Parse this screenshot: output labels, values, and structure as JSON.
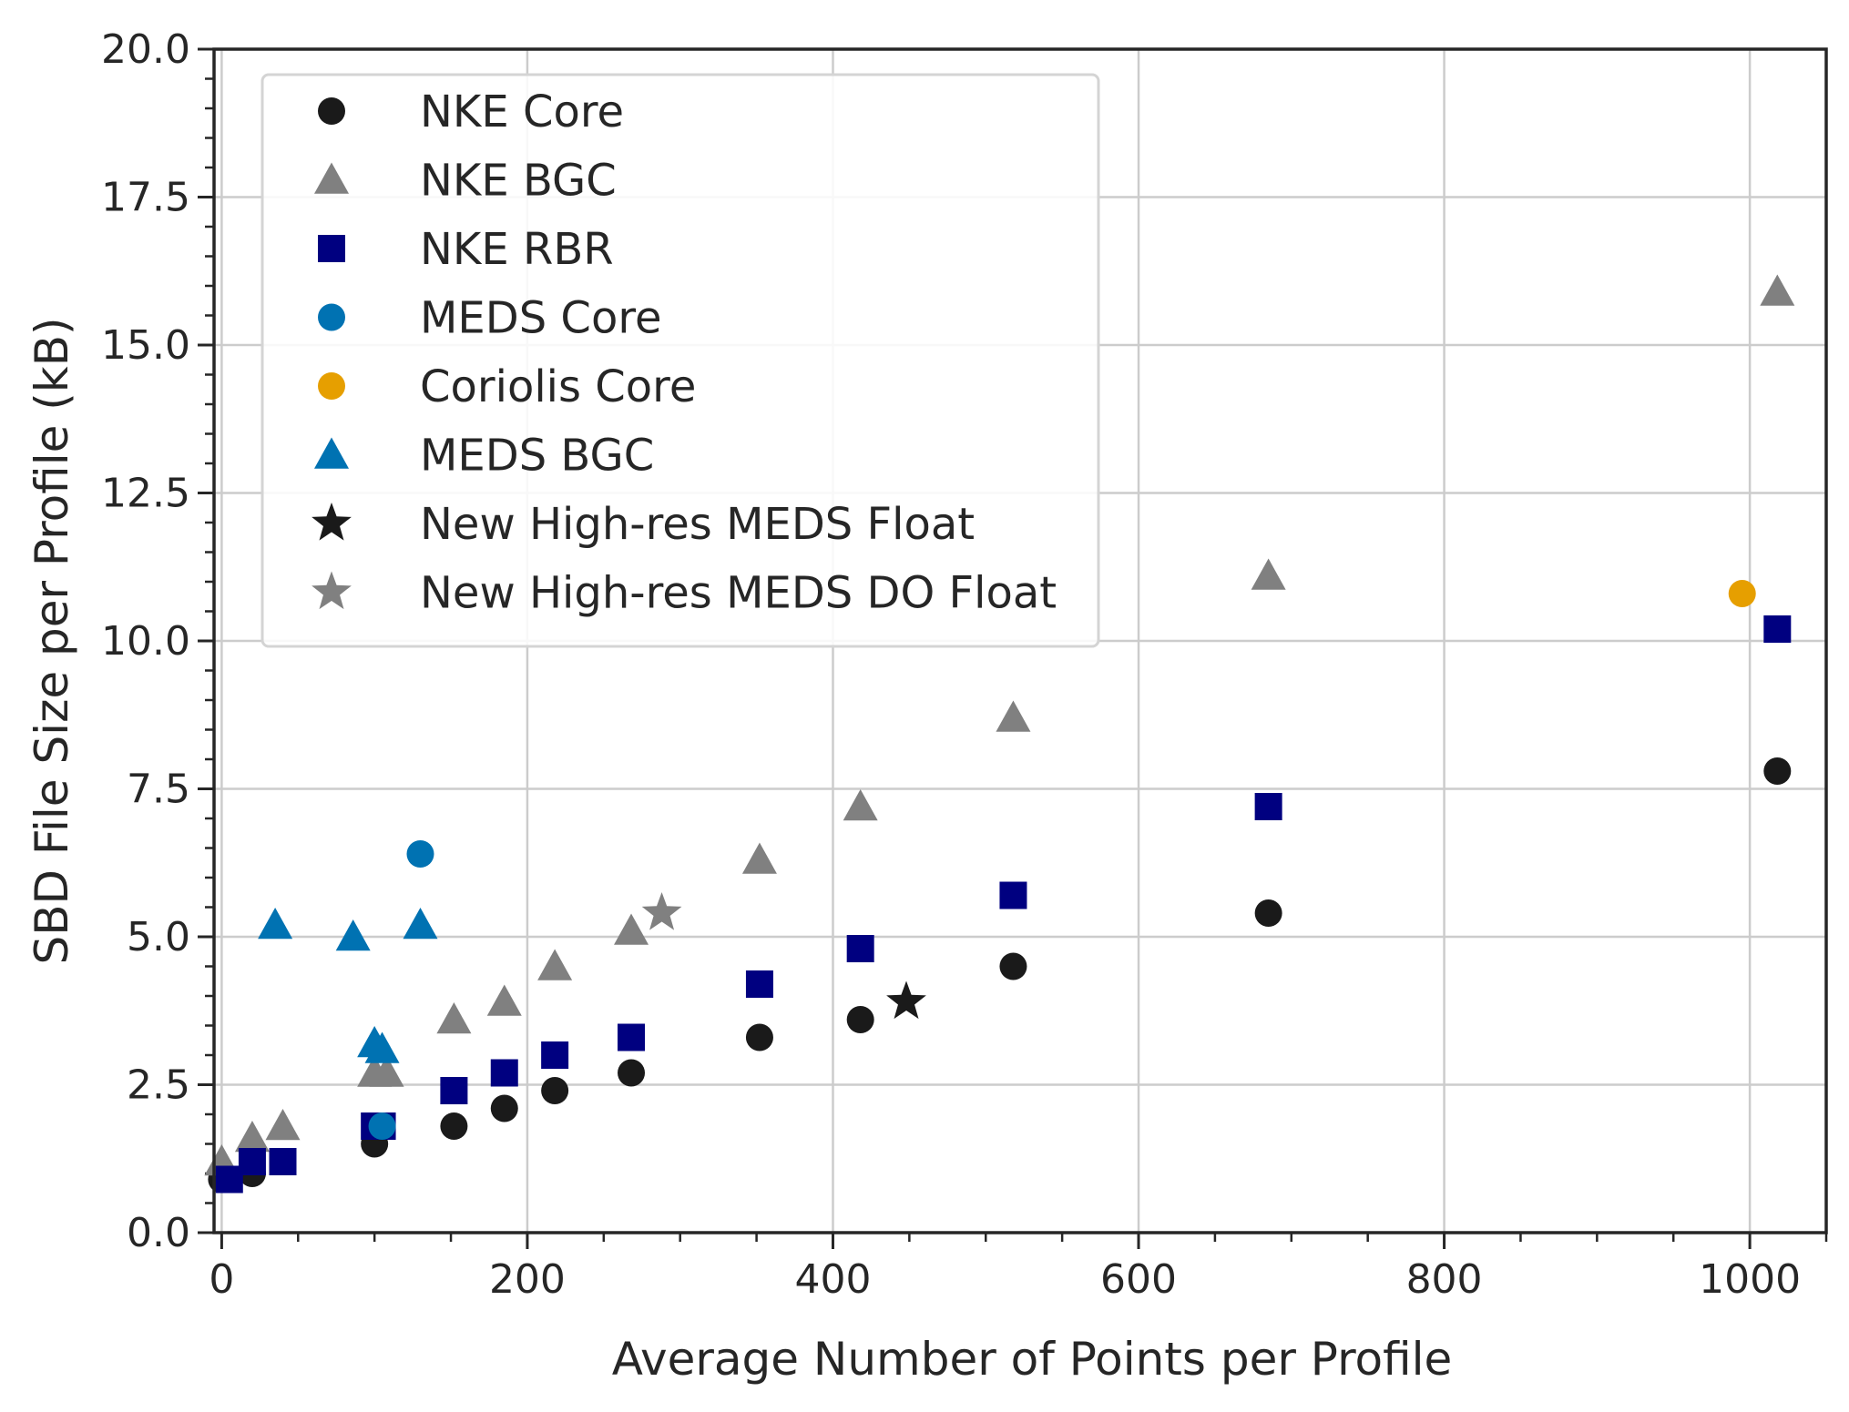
{
  "chart_data": {
    "type": "scatter",
    "title": "",
    "xlabel": "Average Number of Points per Profile",
    "ylabel": "SBD File Size per Profile (kB)",
    "xlim": [
      -5,
      1050
    ],
    "ylim": [
      0,
      20
    ],
    "xticks": [
      0,
      200,
      400,
      600,
      800,
      1000
    ],
    "xtick_labels": [
      "0",
      "200",
      "400",
      "600",
      "800",
      "1000"
    ],
    "yticks": [
      0,
      2.5,
      5,
      7.5,
      10,
      12.5,
      15,
      17.5,
      20
    ],
    "ytick_labels": [
      "0.0",
      "2.5",
      "5.0",
      "7.5",
      "10.0",
      "12.5",
      "15.0",
      "17.5",
      "20.0"
    ],
    "grid": true,
    "legend_position": "top-left",
    "series": [
      {
        "name": "NKE Core",
        "marker": "circle",
        "color": "#1a1a1a",
        "x": [
          0,
          20,
          40,
          100,
          152,
          185,
          218,
          268,
          352,
          418,
          518,
          685,
          1018
        ],
        "y": [
          0.9,
          1.0,
          1.2,
          1.5,
          1.8,
          2.1,
          2.4,
          2.7,
          3.3,
          3.6,
          4.5,
          5.4,
          7.8
        ]
      },
      {
        "name": "NKE BGC",
        "marker": "triangle",
        "color": "#808080",
        "x": [
          0,
          20,
          40,
          100,
          108,
          152,
          185,
          218,
          268,
          352,
          418,
          518,
          685,
          1018
        ],
        "y": [
          1.2,
          1.6,
          1.8,
          2.7,
          2.7,
          3.6,
          3.9,
          4.5,
          5.1,
          6.3,
          7.2,
          8.7,
          11.1,
          15.9
        ]
      },
      {
        "name": "NKE RBR",
        "marker": "square",
        "color": "#000080",
        "x": [
          5,
          20,
          40,
          100,
          105,
          152,
          185,
          218,
          268,
          352,
          418,
          518,
          685,
          1018
        ],
        "y": [
          0.9,
          1.2,
          1.2,
          1.8,
          1.8,
          2.4,
          2.7,
          3.0,
          3.3,
          4.2,
          4.8,
          5.7,
          7.2,
          10.2
        ]
      },
      {
        "name": "MEDS Core",
        "marker": "circle",
        "color": "#0072b2",
        "x": [
          105,
          130
        ],
        "y": [
          1.8,
          6.4
        ]
      },
      {
        "name": "Coriolis Core",
        "marker": "circle",
        "color": "#e69f00",
        "x": [
          995
        ],
        "y": [
          10.8
        ]
      },
      {
        "name": "MEDS BGC",
        "marker": "triangle",
        "color": "#0072b2",
        "x": [
          35,
          86,
          100,
          105,
          130
        ],
        "y": [
          5.2,
          5.0,
          3.2,
          3.1,
          5.2
        ]
      },
      {
        "name": "New High-res MEDS Float",
        "marker": "star",
        "color": "#1a1a1a",
        "x": [
          448
        ],
        "y": [
          3.9
        ]
      },
      {
        "name": "New High-res MEDS DO Float",
        "marker": "star",
        "color": "#808080",
        "x": [
          288
        ],
        "y": [
          5.4
        ]
      }
    ]
  }
}
